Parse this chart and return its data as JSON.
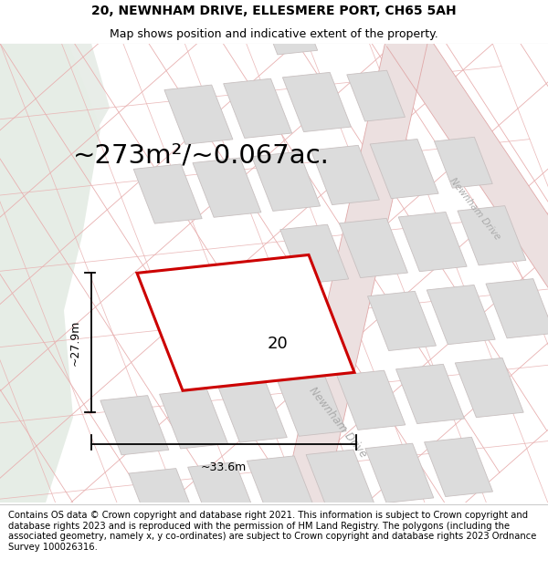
{
  "title_line1": "20, NEWNHAM DRIVE, ELLESMERE PORT, CH65 5AH",
  "title_line2": "Map shows position and indicative extent of the property.",
  "area_text": "~273m²/~0.067ac.",
  "property_number": "20",
  "dim_width": "~33.6m",
  "dim_height": "~27.9m",
  "footer_text": "Contains OS data © Crown copyright and database right 2021. This information is subject to Crown copyright and database rights 2023 and is reproduced with the permission of HM Land Registry. The polygons (including the associated geometry, namely x, y co-ordinates) are subject to Crown copyright and database rights 2023 Ordnance Survey 100026316.",
  "map_bg": "#f5f5f2",
  "green_area_color": "#e8ede8",
  "plot_outline_color": "#cc0000",
  "building_color": "#dcdcdc",
  "building_outline": "#c8c0c0",
  "road_line_color": "#e8b8b8",
  "road_label_color": "#aaaaaa",
  "title_fontsize": 10,
  "subtitle_fontsize": 9,
  "area_fontsize": 21,
  "footer_fontsize": 7.2,
  "road_label_fontsize": 8.5,
  "dim_label_fontsize": 9
}
